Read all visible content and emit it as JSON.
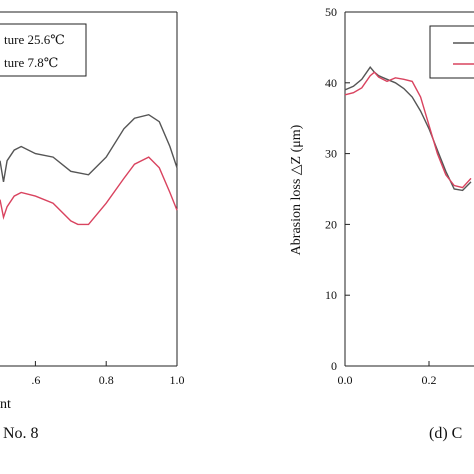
{
  "chart_data": [
    {
      "type": "line",
      "panel": "left",
      "xlim": [
        0.5,
        1.0
      ],
      "x_ticks": [
        ".6",
        "0.8",
        "1.0"
      ],
      "xlabel_partial": "nt",
      "legend_entries": [
        "ture 25.6℃",
        "ture 7.8℃"
      ],
      "caption_partial": "No. 8",
      "colors": [
        "#555555",
        "#d9435f"
      ],
      "series": [
        {
          "name": "ture 25.6℃",
          "color": "#555555",
          "points": [
            [
              0.5,
              0.58
            ],
            [
              0.51,
              0.52
            ],
            [
              0.52,
              0.58
            ],
            [
              0.54,
              0.61
            ],
            [
              0.56,
              0.62
            ],
            [
              0.6,
              0.6
            ],
            [
              0.65,
              0.59
            ],
            [
              0.7,
              0.55
            ],
            [
              0.75,
              0.54
            ],
            [
              0.8,
              0.59
            ],
            [
              0.85,
              0.67
            ],
            [
              0.88,
              0.7
            ],
            [
              0.92,
              0.71
            ],
            [
              0.95,
              0.69
            ],
            [
              0.98,
              0.62
            ],
            [
              1.0,
              0.56
            ]
          ]
        },
        {
          "name": "ture 7.8℃",
          "color": "#d9435f",
          "points": [
            [
              0.5,
              0.47
            ],
            [
              0.51,
              0.42
            ],
            [
              0.52,
              0.45
            ],
            [
              0.54,
              0.48
            ],
            [
              0.56,
              0.49
            ],
            [
              0.6,
              0.48
            ],
            [
              0.65,
              0.46
            ],
            [
              0.7,
              0.41
            ],
            [
              0.72,
              0.4
            ],
            [
              0.75,
              0.4
            ],
            [
              0.8,
              0.46
            ],
            [
              0.85,
              0.53
            ],
            [
              0.88,
              0.57
            ],
            [
              0.92,
              0.59
            ],
            [
              0.95,
              0.56
            ],
            [
              0.98,
              0.49
            ],
            [
              1.0,
              0.44
            ]
          ]
        }
      ]
    },
    {
      "type": "line",
      "panel": "right",
      "ylabel": "Abrasion loss △Z (μm)",
      "xlim": [
        0.0,
        0.4
      ],
      "ylim": [
        0,
        50
      ],
      "y_ticks": [
        "0",
        "10",
        "20",
        "30",
        "40",
        "50"
      ],
      "x_ticks": [
        "0.0",
        "0.2"
      ],
      "caption_partial": "(d) C",
      "colors": [
        "#555555",
        "#d9435f"
      ],
      "series": [
        {
          "color": "#555555",
          "points": [
            [
              0.0,
              39.0
            ],
            [
              0.02,
              39.5
            ],
            [
              0.04,
              40.5
            ],
            [
              0.06,
              42.2
            ],
            [
              0.07,
              41.5
            ],
            [
              0.08,
              41.0
            ],
            [
              0.1,
              40.5
            ],
            [
              0.12,
              40.0
            ],
            [
              0.14,
              39.2
            ],
            [
              0.16,
              38.0
            ],
            [
              0.18,
              36.0
            ],
            [
              0.2,
              33.5
            ],
            [
              0.22,
              30.5
            ],
            [
              0.24,
              27.5
            ],
            [
              0.26,
              25.0
            ],
            [
              0.28,
              24.8
            ],
            [
              0.3,
              26.0
            ]
          ]
        },
        {
          "color": "#d9435f",
          "points": [
            [
              0.0,
              38.3
            ],
            [
              0.02,
              38.6
            ],
            [
              0.04,
              39.3
            ],
            [
              0.06,
              41.0
            ],
            [
              0.07,
              41.5
            ],
            [
              0.08,
              40.8
            ],
            [
              0.1,
              40.2
            ],
            [
              0.12,
              40.7
            ],
            [
              0.14,
              40.5
            ],
            [
              0.16,
              40.2
            ],
            [
              0.18,
              38.0
            ],
            [
              0.2,
              34.0
            ],
            [
              0.22,
              30.0
            ],
            [
              0.24,
              27.0
            ],
            [
              0.26,
              25.5
            ],
            [
              0.28,
              25.2
            ],
            [
              0.3,
              26.5
            ]
          ]
        }
      ]
    }
  ]
}
